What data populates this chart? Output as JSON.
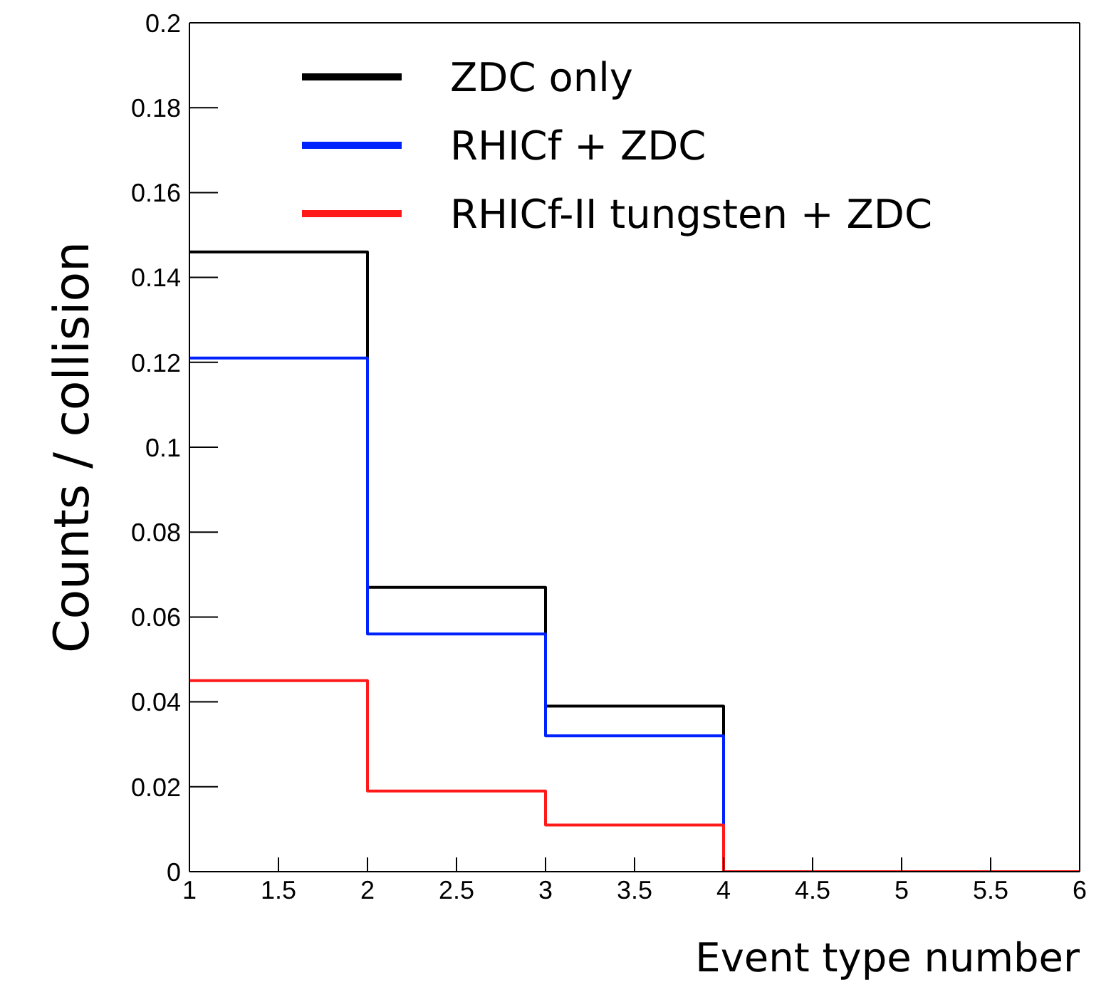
{
  "chart_data": {
    "type": "histogram",
    "xlabel": "Event type number",
    "ylabel": "Counts / collision",
    "bins": [
      1,
      2,
      3,
      4,
      5,
      6
    ],
    "series": [
      {
        "name": "ZDC only",
        "color": "#000000",
        "values": [
          0.146,
          0.067,
          0.039,
          0,
          0
        ]
      },
      {
        "name": "RHICf + ZDC",
        "color": "#0022ff",
        "values": [
          0.121,
          0.056,
          0.032,
          0,
          0
        ]
      },
      {
        "name": "RHICf-II tungsten + ZDC",
        "color": "#ff1a1a",
        "values": [
          0.045,
          0.019,
          0.011,
          0,
          0
        ]
      }
    ],
    "xlim": [
      1,
      6
    ],
    "xticks": [
      1,
      1.5,
      2,
      2.5,
      3,
      3.5,
      4,
      4.5,
      5,
      5.5,
      6
    ],
    "ylim": [
      0,
      0.2
    ],
    "yticks": [
      0,
      0.02,
      0.04,
      0.06,
      0.08,
      0.1,
      0.12,
      0.14,
      0.16,
      0.18,
      0.2
    ],
    "grid": false,
    "legend": "top right"
  }
}
